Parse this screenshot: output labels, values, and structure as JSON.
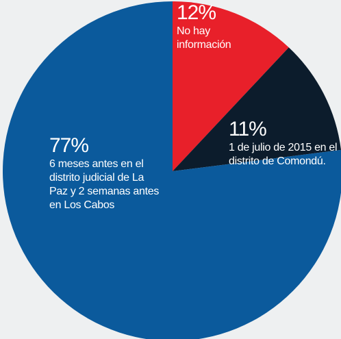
{
  "chart_data": {
    "type": "pie",
    "categories": [
      "No hay información",
      "1 de julio de 2015 en el distrito de Comondú.",
      "6 meses antes en el distrito judicial de La Paz y 2 semanas antes en Los Cabos"
    ],
    "values": [
      12,
      11,
      77
    ],
    "value_labels": [
      "12%",
      "11%",
      "77%"
    ],
    "colors": [
      "#e8202a",
      "#0c1c2c",
      "#0b5a9c"
    ]
  }
}
